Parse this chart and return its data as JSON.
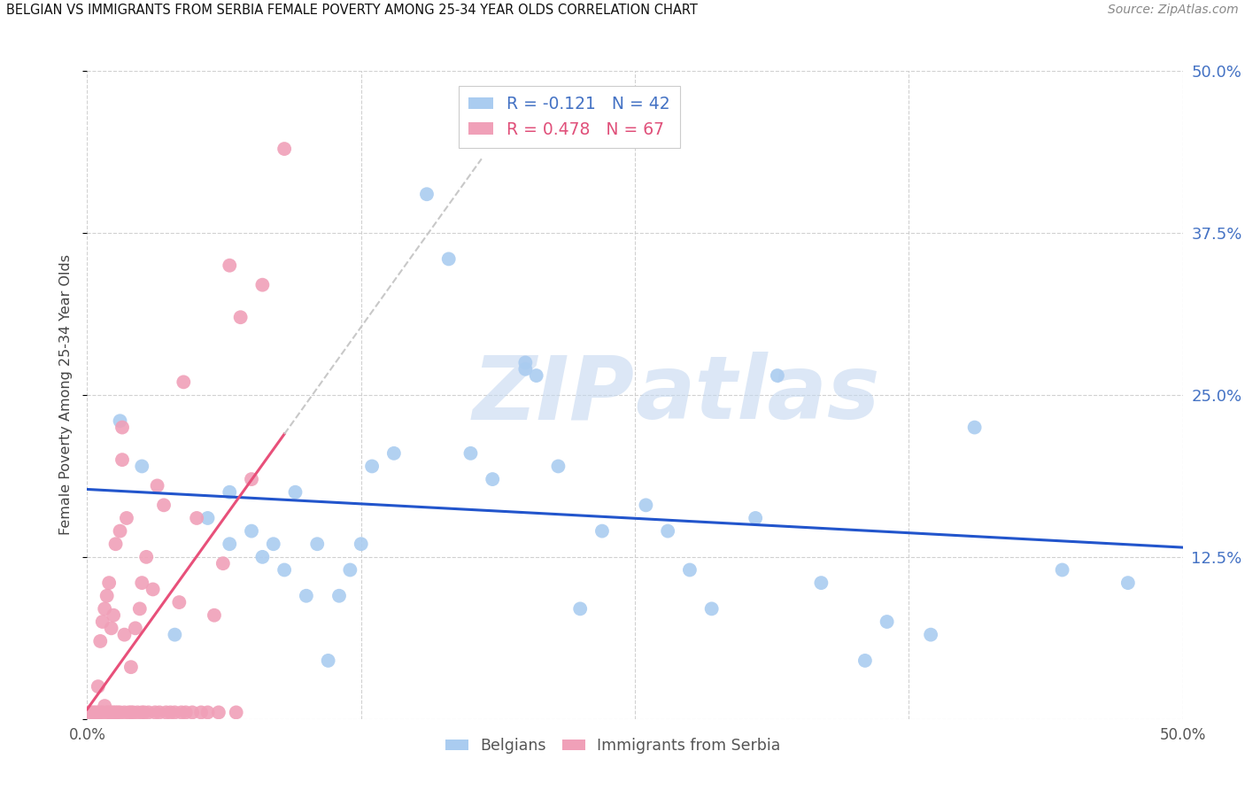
{
  "title": "BELGIAN VS IMMIGRANTS FROM SERBIA FEMALE POVERTY AMONG 25-34 YEAR OLDS CORRELATION CHART",
  "source": "Source: ZipAtlas.com",
  "ylabel": "Female Poverty Among 25-34 Year Olds",
  "xmin": 0.0,
  "xmax": 0.5,
  "ymin": 0.0,
  "ymax": 0.5,
  "xticks": [
    0.0,
    0.125,
    0.25,
    0.375,
    0.5
  ],
  "yticks": [
    0.0,
    0.125,
    0.25,
    0.375,
    0.5
  ],
  "legend_r1": "-0.121",
  "legend_n1": "42",
  "legend_r2": "0.478",
  "legend_n2": "67",
  "color_belgian": "#aaccf0",
  "color_serbia": "#f0a0b8",
  "color_trendline_belgian": "#2255cc",
  "color_trendline_serbia": "#e8507a",
  "color_trendline_serbia_dashed": "#c8c8c8",
  "background_color": "#ffffff",
  "belgians_x": [
    0.015,
    0.025,
    0.04,
    0.055,
    0.065,
    0.065,
    0.075,
    0.08,
    0.085,
    0.09,
    0.095,
    0.1,
    0.105,
    0.11,
    0.115,
    0.12,
    0.125,
    0.13,
    0.14,
    0.155,
    0.165,
    0.175,
    0.185,
    0.2,
    0.205,
    0.215,
    0.225,
    0.235,
    0.255,
    0.265,
    0.275,
    0.285,
    0.305,
    0.315,
    0.335,
    0.355,
    0.365,
    0.385,
    0.405,
    0.445,
    0.475,
    0.2
  ],
  "belgians_y": [
    0.23,
    0.195,
    0.065,
    0.155,
    0.175,
    0.135,
    0.145,
    0.125,
    0.135,
    0.115,
    0.175,
    0.095,
    0.135,
    0.045,
    0.095,
    0.115,
    0.135,
    0.195,
    0.205,
    0.405,
    0.355,
    0.205,
    0.185,
    0.275,
    0.265,
    0.195,
    0.085,
    0.145,
    0.165,
    0.145,
    0.115,
    0.085,
    0.155,
    0.265,
    0.105,
    0.045,
    0.075,
    0.065,
    0.225,
    0.115,
    0.105,
    0.27
  ],
  "serbia_x": [
    0.001,
    0.002,
    0.003,
    0.004,
    0.005,
    0.005,
    0.006,
    0.006,
    0.007,
    0.007,
    0.008,
    0.008,
    0.009,
    0.009,
    0.01,
    0.01,
    0.011,
    0.011,
    0.012,
    0.012,
    0.013,
    0.013,
    0.014,
    0.015,
    0.015,
    0.016,
    0.016,
    0.017,
    0.017,
    0.018,
    0.019,
    0.02,
    0.02,
    0.021,
    0.022,
    0.023,
    0.024,
    0.025,
    0.025,
    0.026,
    0.027,
    0.028,
    0.03,
    0.031,
    0.032,
    0.033,
    0.035,
    0.036,
    0.038,
    0.04,
    0.042,
    0.043,
    0.044,
    0.045,
    0.048,
    0.05,
    0.052,
    0.055,
    0.058,
    0.06,
    0.062,
    0.065,
    0.068,
    0.07,
    0.075,
    0.08,
    0.09
  ],
  "serbia_y": [
    0.005,
    0.005,
    0.005,
    0.005,
    0.005,
    0.025,
    0.005,
    0.06,
    0.005,
    0.075,
    0.01,
    0.085,
    0.005,
    0.095,
    0.005,
    0.105,
    0.005,
    0.07,
    0.005,
    0.08,
    0.005,
    0.135,
    0.005,
    0.145,
    0.005,
    0.2,
    0.225,
    0.005,
    0.065,
    0.155,
    0.005,
    0.005,
    0.04,
    0.005,
    0.07,
    0.005,
    0.085,
    0.005,
    0.105,
    0.005,
    0.125,
    0.005,
    0.1,
    0.005,
    0.18,
    0.005,
    0.165,
    0.005,
    0.005,
    0.005,
    0.09,
    0.005,
    0.26,
    0.005,
    0.005,
    0.155,
    0.005,
    0.005,
    0.08,
    0.005,
    0.12,
    0.35,
    0.005,
    0.31,
    0.185,
    0.335,
    0.44
  ]
}
